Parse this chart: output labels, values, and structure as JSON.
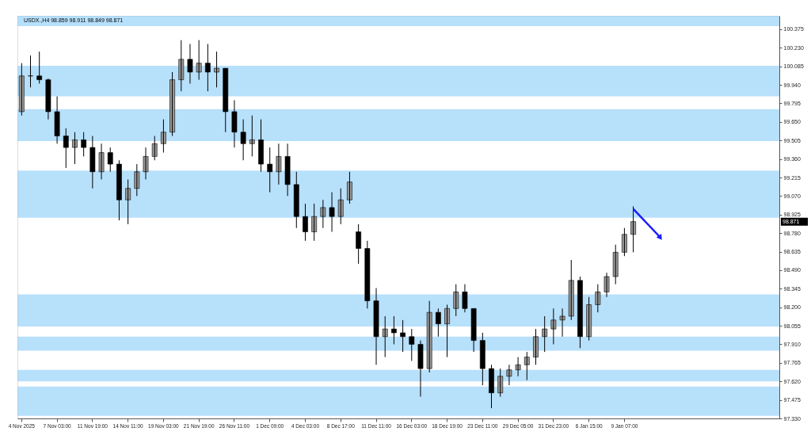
{
  "chart_data": {
    "type": "candlestick",
    "title": "USDX.,H4  98.859 98.911 98.849 98.871",
    "categories": [
      "4 Nov 2025",
      null,
      null,
      null,
      "7 Nov 03:00",
      null,
      null,
      null,
      "11 Nov 19:00",
      null,
      null,
      null,
      "14 Nov 11:00",
      null,
      null,
      null,
      "19 Nov 03:00",
      null,
      null,
      null,
      "21 Nov 19:00",
      null,
      null,
      null,
      "26 Nov 11:00",
      null,
      null,
      null,
      "1 Dec 09:00",
      null,
      null,
      null,
      "4 Dec 03:00",
      null,
      null,
      null,
      "8 Dec 17:00",
      null,
      null,
      null,
      "11 Dec 11:00",
      null,
      null,
      null,
      "16 Dec 03:00",
      null,
      null,
      null,
      "18 Dec 19:00",
      null,
      null,
      null,
      "23 Dec 11:00",
      null,
      null,
      null,
      "29 Dec 05:00",
      null,
      null,
      null,
      "31 Dec 23:00",
      null,
      null,
      null,
      "6 Jan 15:00",
      null,
      null,
      null,
      "9 Jan 07:00",
      null,
      null,
      null,
      null,
      null,
      null,
      null,
      null,
      null,
      null,
      null,
      null,
      null,
      null,
      null,
      null,
      null
    ],
    "ohlc": [
      [
        99.73,
        100.11,
        99.7,
        100.01
      ],
      [
        100.01,
        100.17,
        99.92,
        100.01
      ],
      [
        100.01,
        100.2,
        99.95,
        99.98
      ],
      [
        99.98,
        99.99,
        99.67,
        99.73
      ],
      [
        99.73,
        99.85,
        99.48,
        99.54
      ],
      [
        99.54,
        99.6,
        99.29,
        99.45
      ],
      [
        99.45,
        99.57,
        99.32,
        99.51
      ],
      [
        99.51,
        99.57,
        99.38,
        99.45
      ],
      [
        99.45,
        99.54,
        99.13,
        99.26
      ],
      [
        99.26,
        99.48,
        99.2,
        99.41
      ],
      [
        99.41,
        99.45,
        99.26,
        99.32
      ],
      [
        99.32,
        99.35,
        98.88,
        99.04
      ],
      [
        99.04,
        99.2,
        98.85,
        99.13
      ],
      [
        99.13,
        99.32,
        99.07,
        99.26
      ],
      [
        99.26,
        99.45,
        99.2,
        99.38
      ],
      [
        99.38,
        99.54,
        99.35,
        99.48
      ],
      [
        99.48,
        99.67,
        99.41,
        99.57
      ],
      [
        99.57,
        100.04,
        99.54,
        99.98
      ],
      [
        99.98,
        100.29,
        99.89,
        100.14
      ],
      [
        100.14,
        100.26,
        99.95,
        100.04
      ],
      [
        100.04,
        100.29,
        99.98,
        100.11
      ],
      [
        100.11,
        100.26,
        99.89,
        100.04
      ],
      [
        100.04,
        100.2,
        99.92,
        100.07
      ],
      [
        100.07,
        100.07,
        99.57,
        99.73
      ],
      [
        99.73,
        99.82,
        99.45,
        99.57
      ],
      [
        99.57,
        99.67,
        99.35,
        99.48
      ],
      [
        99.48,
        99.7,
        99.38,
        99.51
      ],
      [
        99.51,
        99.67,
        99.26,
        99.32
      ],
      [
        99.32,
        99.45,
        99.1,
        99.26
      ],
      [
        99.26,
        99.48,
        99.16,
        99.38
      ],
      [
        99.38,
        99.48,
        99.07,
        99.16
      ],
      [
        99.16,
        99.26,
        98.82,
        98.91
      ],
      [
        98.91,
        99.01,
        98.72,
        98.79
      ],
      [
        98.79,
        99.01,
        98.72,
        98.91
      ],
      [
        98.91,
        99.04,
        98.82,
        98.98
      ],
      [
        98.98,
        99.1,
        98.79,
        98.91
      ],
      [
        98.91,
        99.13,
        98.85,
        99.04
      ],
      [
        99.04,
        99.26,
        99.01,
        99.18
      ],
      [
        98.79,
        98.85,
        98.54,
        98.66
      ],
      [
        98.66,
        98.72,
        98.19,
        98.25
      ],
      [
        98.25,
        98.35,
        97.75,
        97.97
      ],
      [
        97.97,
        98.13,
        97.81,
        98.03
      ],
      [
        98.03,
        98.13,
        97.91,
        98.0
      ],
      [
        98.0,
        98.1,
        97.85,
        97.97
      ],
      [
        97.97,
        98.03,
        97.78,
        97.91
      ],
      [
        97.91,
        97.94,
        97.5,
        97.72
      ],
      [
        97.72,
        98.25,
        97.69,
        98.16
      ],
      [
        98.16,
        98.19,
        97.97,
        98.07
      ],
      [
        98.07,
        98.22,
        97.81,
        98.19
      ],
      [
        98.19,
        98.38,
        98.13,
        98.32
      ],
      [
        98.32,
        98.38,
        98.16,
        98.19
      ],
      [
        98.19,
        98.19,
        97.85,
        97.94
      ],
      [
        97.94,
        98.0,
        97.59,
        97.72
      ],
      [
        97.72,
        97.75,
        97.41,
        97.53
      ],
      [
        97.53,
        97.72,
        97.5,
        97.66
      ],
      [
        97.66,
        97.75,
        97.59,
        97.71
      ],
      [
        97.71,
        97.81,
        97.66,
        97.75
      ],
      [
        97.75,
        97.85,
        97.63,
        97.81
      ],
      [
        97.81,
        98.03,
        97.75,
        97.97
      ],
      [
        97.97,
        98.13,
        97.85,
        98.03
      ],
      [
        98.03,
        98.19,
        97.91,
        98.1
      ],
      [
        98.1,
        98.19,
        97.97,
        98.13
      ],
      [
        98.13,
        98.57,
        98.1,
        98.41
      ],
      [
        98.41,
        98.44,
        97.88,
        97.97
      ],
      [
        97.97,
        98.28,
        97.94,
        98.22
      ],
      [
        98.22,
        98.38,
        98.16,
        98.32
      ],
      [
        98.32,
        98.47,
        98.28,
        98.44
      ],
      [
        98.44,
        98.69,
        98.38,
        98.63
      ],
      [
        98.63,
        98.82,
        98.6,
        98.77
      ],
      [
        98.77,
        98.99,
        98.63,
        98.87
      ],
      null,
      null,
      null,
      null,
      null,
      null,
      null,
      null,
      null,
      null,
      null,
      null,
      null,
      null,
      null,
      null
    ],
    "colors": [
      "#9a9a9a",
      "#000000",
      "#000000",
      "#000000",
      "#000000",
      "#000000",
      "#9a9a9a",
      "#000000",
      "#000000",
      "#9a9a9a",
      "#000000",
      "#000000",
      "#9a9a9a",
      "#9a9a9a",
      "#9a9a9a",
      "#9a9a9a",
      "#9a9a9a",
      "#9a9a9a",
      "#9a9a9a",
      "#000000",
      "#9a9a9a",
      "#000000",
      "#9a9a9a",
      "#000000",
      "#000000",
      "#000000",
      "#9a9a9a",
      "#000000",
      "#000000",
      "#9a9a9a",
      "#000000",
      "#000000",
      "#000000",
      "#9a9a9a",
      "#9a9a9a",
      "#000000",
      "#9a9a9a",
      "#9a9a9a",
      "#000000",
      "#000000",
      "#000000",
      "#9a9a9a",
      "#000000",
      "#000000",
      "#000000",
      "#000000",
      "#9a9a9a",
      "#000000",
      "#9a9a9a",
      "#9a9a9a",
      "#000000",
      "#000000",
      "#000000",
      "#000000",
      "#9a9a9a",
      "#9a9a9a",
      "#9a9a9a",
      "#9a9a9a",
      "#9a9a9a",
      "#9a9a9a",
      "#9a9a9a",
      "#9a9a9a",
      "#9a9a9a",
      "#000000",
      "#9a9a9a",
      "#9a9a9a",
      "#9a9a9a",
      "#9a9a9a",
      "#9a9a9a",
      "#9a9a9a",
      null,
      null,
      null,
      null,
      null,
      null,
      null,
      null,
      null,
      null,
      null,
      null,
      null,
      null,
      null,
      null
    ],
    "ylim": [
      97.33,
      100.48
    ],
    "yticks": [
      {
        "value": 97.33,
        "label": "97.330"
      },
      {
        "value": 97.475,
        "label": "97.475"
      },
      {
        "value": 97.62,
        "label": "97.620"
      },
      {
        "value": 97.765,
        "label": "97.765"
      },
      {
        "value": 97.91,
        "label": "97.910"
      },
      {
        "value": 98.055,
        "label": "98.055"
      },
      {
        "value": 98.2,
        "label": "98.200"
      },
      {
        "value": 98.345,
        "label": "98.345"
      },
      {
        "value": 98.49,
        "label": "98.490"
      },
      {
        "value": 98.635,
        "label": "98.635"
      },
      {
        "value": 98.78,
        "label": "98.780"
      },
      {
        "value": 98.925,
        "label": "98.925"
      },
      {
        "value": 99.07,
        "label": "99.070"
      },
      {
        "value": 99.215,
        "label": "99.215"
      },
      {
        "value": 99.36,
        "label": "99.360"
      },
      {
        "value": 99.505,
        "label": "99.505"
      },
      {
        "value": 99.65,
        "label": "99.650"
      },
      {
        "value": 99.795,
        "label": "99.795"
      },
      {
        "value": 99.94,
        "label": "99.940"
      },
      {
        "value": 100.085,
        "label": "100.085"
      },
      {
        "value": 100.23,
        "label": "100.230"
      },
      {
        "value": 100.375,
        "label": "100.375"
      }
    ],
    "bands": [
      {
        "axis": "y",
        "from": 100.4,
        "to": 100.48,
        "color": "#87cbf8"
      },
      {
        "axis": "y",
        "from": 99.85,
        "to": 100.09,
        "color": "#87cbf8"
      },
      {
        "axis": "y",
        "from": 99.5,
        "to": 99.75,
        "color": "#87cbf8"
      },
      {
        "axis": "y",
        "from": 98.9,
        "to": 99.27,
        "color": "#87cbf8"
      },
      {
        "axis": "y",
        "from": 98.05,
        "to": 98.3,
        "color": "#87cbf8"
      },
      {
        "axis": "y",
        "from": 97.86,
        "to": 97.97,
        "color": "#87cbf8"
      },
      {
        "axis": "y",
        "from": 97.62,
        "to": 97.71,
        "color": "#87cbf8"
      },
      {
        "axis": "y",
        "from": 97.35,
        "to": 97.58,
        "color": "#87cbf8"
      }
    ],
    "annotations": [
      "98.871"
    ],
    "grid": false
  }
}
